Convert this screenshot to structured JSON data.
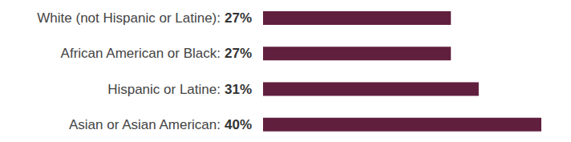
{
  "chart_data": {
    "type": "bar",
    "orientation": "horizontal",
    "categories": [
      "White (not Hispanic or Latine):",
      "African American or Black:",
      "Hispanic or Latine:",
      "Asian or Asian American:"
    ],
    "values": [
      27,
      27,
      31,
      40
    ],
    "value_labels": [
      "27%",
      "27%",
      "31%",
      "40%"
    ],
    "data_labels": true,
    "color": "#611f3e",
    "xlim": [
      0,
      40
    ],
    "grid": false,
    "tick_labels": "y"
  }
}
